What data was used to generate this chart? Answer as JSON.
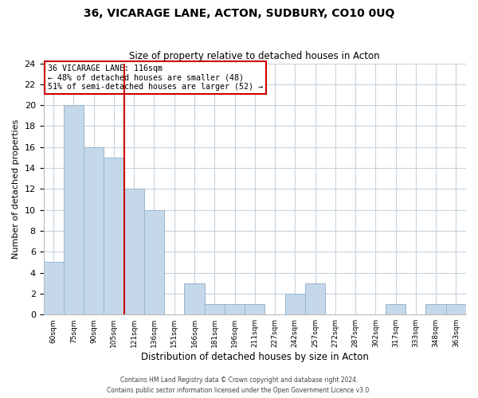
{
  "title": "36, VICARAGE LANE, ACTON, SUDBURY, CO10 0UQ",
  "subtitle": "Size of property relative to detached houses in Acton",
  "xlabel": "Distribution of detached houses by size in Acton",
  "ylabel": "Number of detached properties",
  "bar_labels": [
    "60sqm",
    "75sqm",
    "90sqm",
    "105sqm",
    "121sqm",
    "136sqm",
    "151sqm",
    "166sqm",
    "181sqm",
    "196sqm",
    "211sqm",
    "227sqm",
    "242sqm",
    "257sqm",
    "272sqm",
    "287sqm",
    "302sqm",
    "317sqm",
    "333sqm",
    "348sqm",
    "363sqm"
  ],
  "bar_values": [
    5,
    20,
    16,
    15,
    12,
    10,
    0,
    3,
    1,
    1,
    1,
    0,
    2,
    3,
    0,
    0,
    0,
    1,
    0,
    1,
    1
  ],
  "bar_color": "#c5d8ea",
  "bar_edge_color": "#9ab5cc",
  "vline_x_index": 4,
  "vline_color": "#cc0000",
  "annotation_title": "36 VICARAGE LANE: 116sqm",
  "annotation_line1": "← 48% of detached houses are smaller (48)",
  "annotation_line2": "51% of semi-detached houses are larger (52) →",
  "annotation_box_color": "#ffffff",
  "annotation_box_edge": "#cc0000",
  "ylim": [
    0,
    24
  ],
  "yticks": [
    0,
    2,
    4,
    6,
    8,
    10,
    12,
    14,
    16,
    18,
    20,
    22,
    24
  ],
  "footer1": "Contains HM Land Registry data © Crown copyright and database right 2024.",
  "footer2": "Contains public sector information licensed under the Open Government Licence v3.0.",
  "bg_color": "#ffffff",
  "grid_color": "#c8d4dc"
}
